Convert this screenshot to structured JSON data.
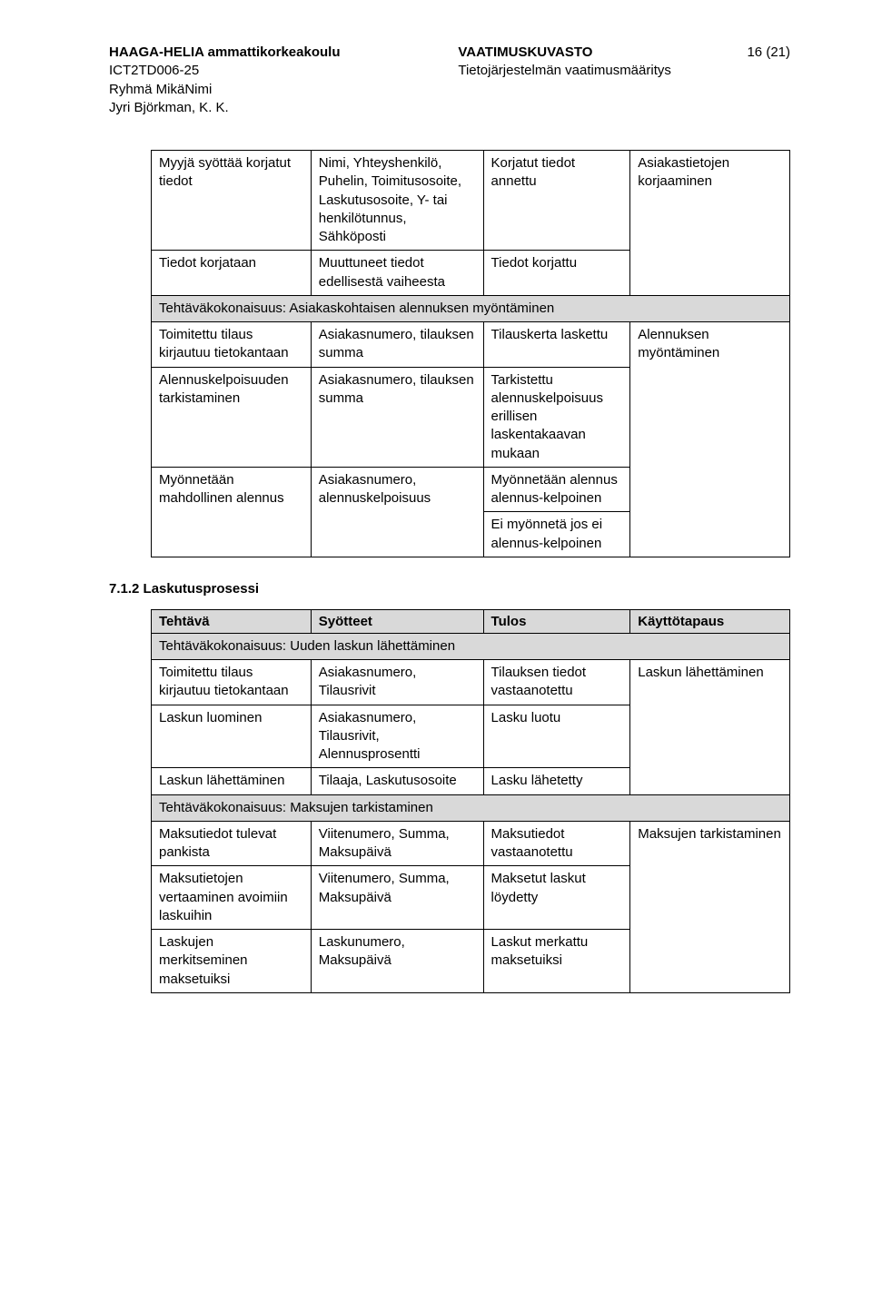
{
  "header": {
    "left_line1_bold": "HAAGA-HELIA ammattikorkeakoulu",
    "left_line2": "ICT2TD006-25",
    "left_line3": "Ryhmä MikäNimi",
    "left_line4": "Jyri Björkman, K. K.",
    "center_line1_bold": "VAATIMUSKUVASTO",
    "center_line2": "Tietojärjestelmän vaatimusmääritys",
    "right_page": "16 (21)"
  },
  "table1": {
    "rows": [
      {
        "c1": "Myyjä syöttää korjatut tiedot",
        "c2": "Nimi, Yhteyshenkilö, Puhelin, Toimitusosoite, Laskutusosoite, Y- tai henkilötunnus, Sähköposti",
        "c3": "Korjatut tiedot annettu",
        "c4": "Asiakastietojen korjaaminen",
        "rowspan4": 2
      },
      {
        "c1": "Tiedot korjataan",
        "c2": "Muuttuneet tiedot edellisestä vaiheesta",
        "c3": "Tiedot korjattu"
      },
      {
        "shaded": true,
        "span": "Tehtäväkokonaisuus: Asiakaskohtaisen alennuksen myöntäminen"
      },
      {
        "c1": "Toimitettu tilaus kirjautuu tietokantaan",
        "c2": "Asiakasnumero, tilauksen summa",
        "c3": "Tilauskerta laskettu",
        "c4": "Alennuksen myöntäminen",
        "rowspan4": 4
      },
      {
        "c1": "Alennuskelpoisuuden tarkistaminen",
        "c2": "Asiakasnumero, tilauksen summa",
        "c3": "Tarkistettu alennuskelpoisuus erillisen laskentakaavan mukaan"
      },
      {
        "c1": "Myönnetään mahdollinen alennus",
        "c2": "Asiakasnumero, alennuskelpoisuus",
        "c3": "Myönnetään alennus alennus-kelpoinen",
        "rowspan1": 2,
        "rowspan2": 2
      },
      {
        "c3": "Ei myönnetä jos ei alennus-kelpoinen"
      }
    ]
  },
  "section_heading": "7.1.2 Laskutusprosessi",
  "table2": {
    "headers": [
      "Tehtävä",
      "Syötteet",
      "Tulos",
      "Käyttötapaus"
    ],
    "rows": [
      {
        "shaded": true,
        "span": "Tehtäväkokonaisuus: Uuden laskun lähettäminen"
      },
      {
        "c1": "Toimitettu tilaus kirjautuu tietokantaan",
        "c2": "Asiakasnumero, Tilausrivit",
        "c3": "Tilauksen tiedot vastaanotettu",
        "c4": "Laskun lähettäminen",
        "rowspan4": 3
      },
      {
        "c1": "Laskun luominen",
        "c2": "Asiakasnumero, Tilausrivit, Alennusprosentti",
        "c3": "Lasku luotu"
      },
      {
        "c1": "Laskun lähettäminen",
        "c2": "Tilaaja, Laskutusosoite",
        "c3": "Lasku lähetetty"
      },
      {
        "shaded": true,
        "span": "Tehtäväkokonaisuus: Maksujen tarkistaminen"
      },
      {
        "c1": "Maksutiedot tulevat pankista",
        "c2": "Viitenumero, Summa, Maksupäivä",
        "c3": "Maksutiedot vastaanotettu",
        "c4": "Maksujen tarkistaminen",
        "rowspan4": 3
      },
      {
        "c1": "Maksutietojen vertaaminen avoimiin laskuihin",
        "c2": "Viitenumero, Summa, Maksupäivä",
        "c3": "Maksetut laskut löydetty"
      },
      {
        "c1": "Laskujen merkitseminen maksetuiksi",
        "c2": "Laskunumero, Maksupäivä",
        "c3": "Laskut merkattu maksetuiksi"
      }
    ]
  }
}
